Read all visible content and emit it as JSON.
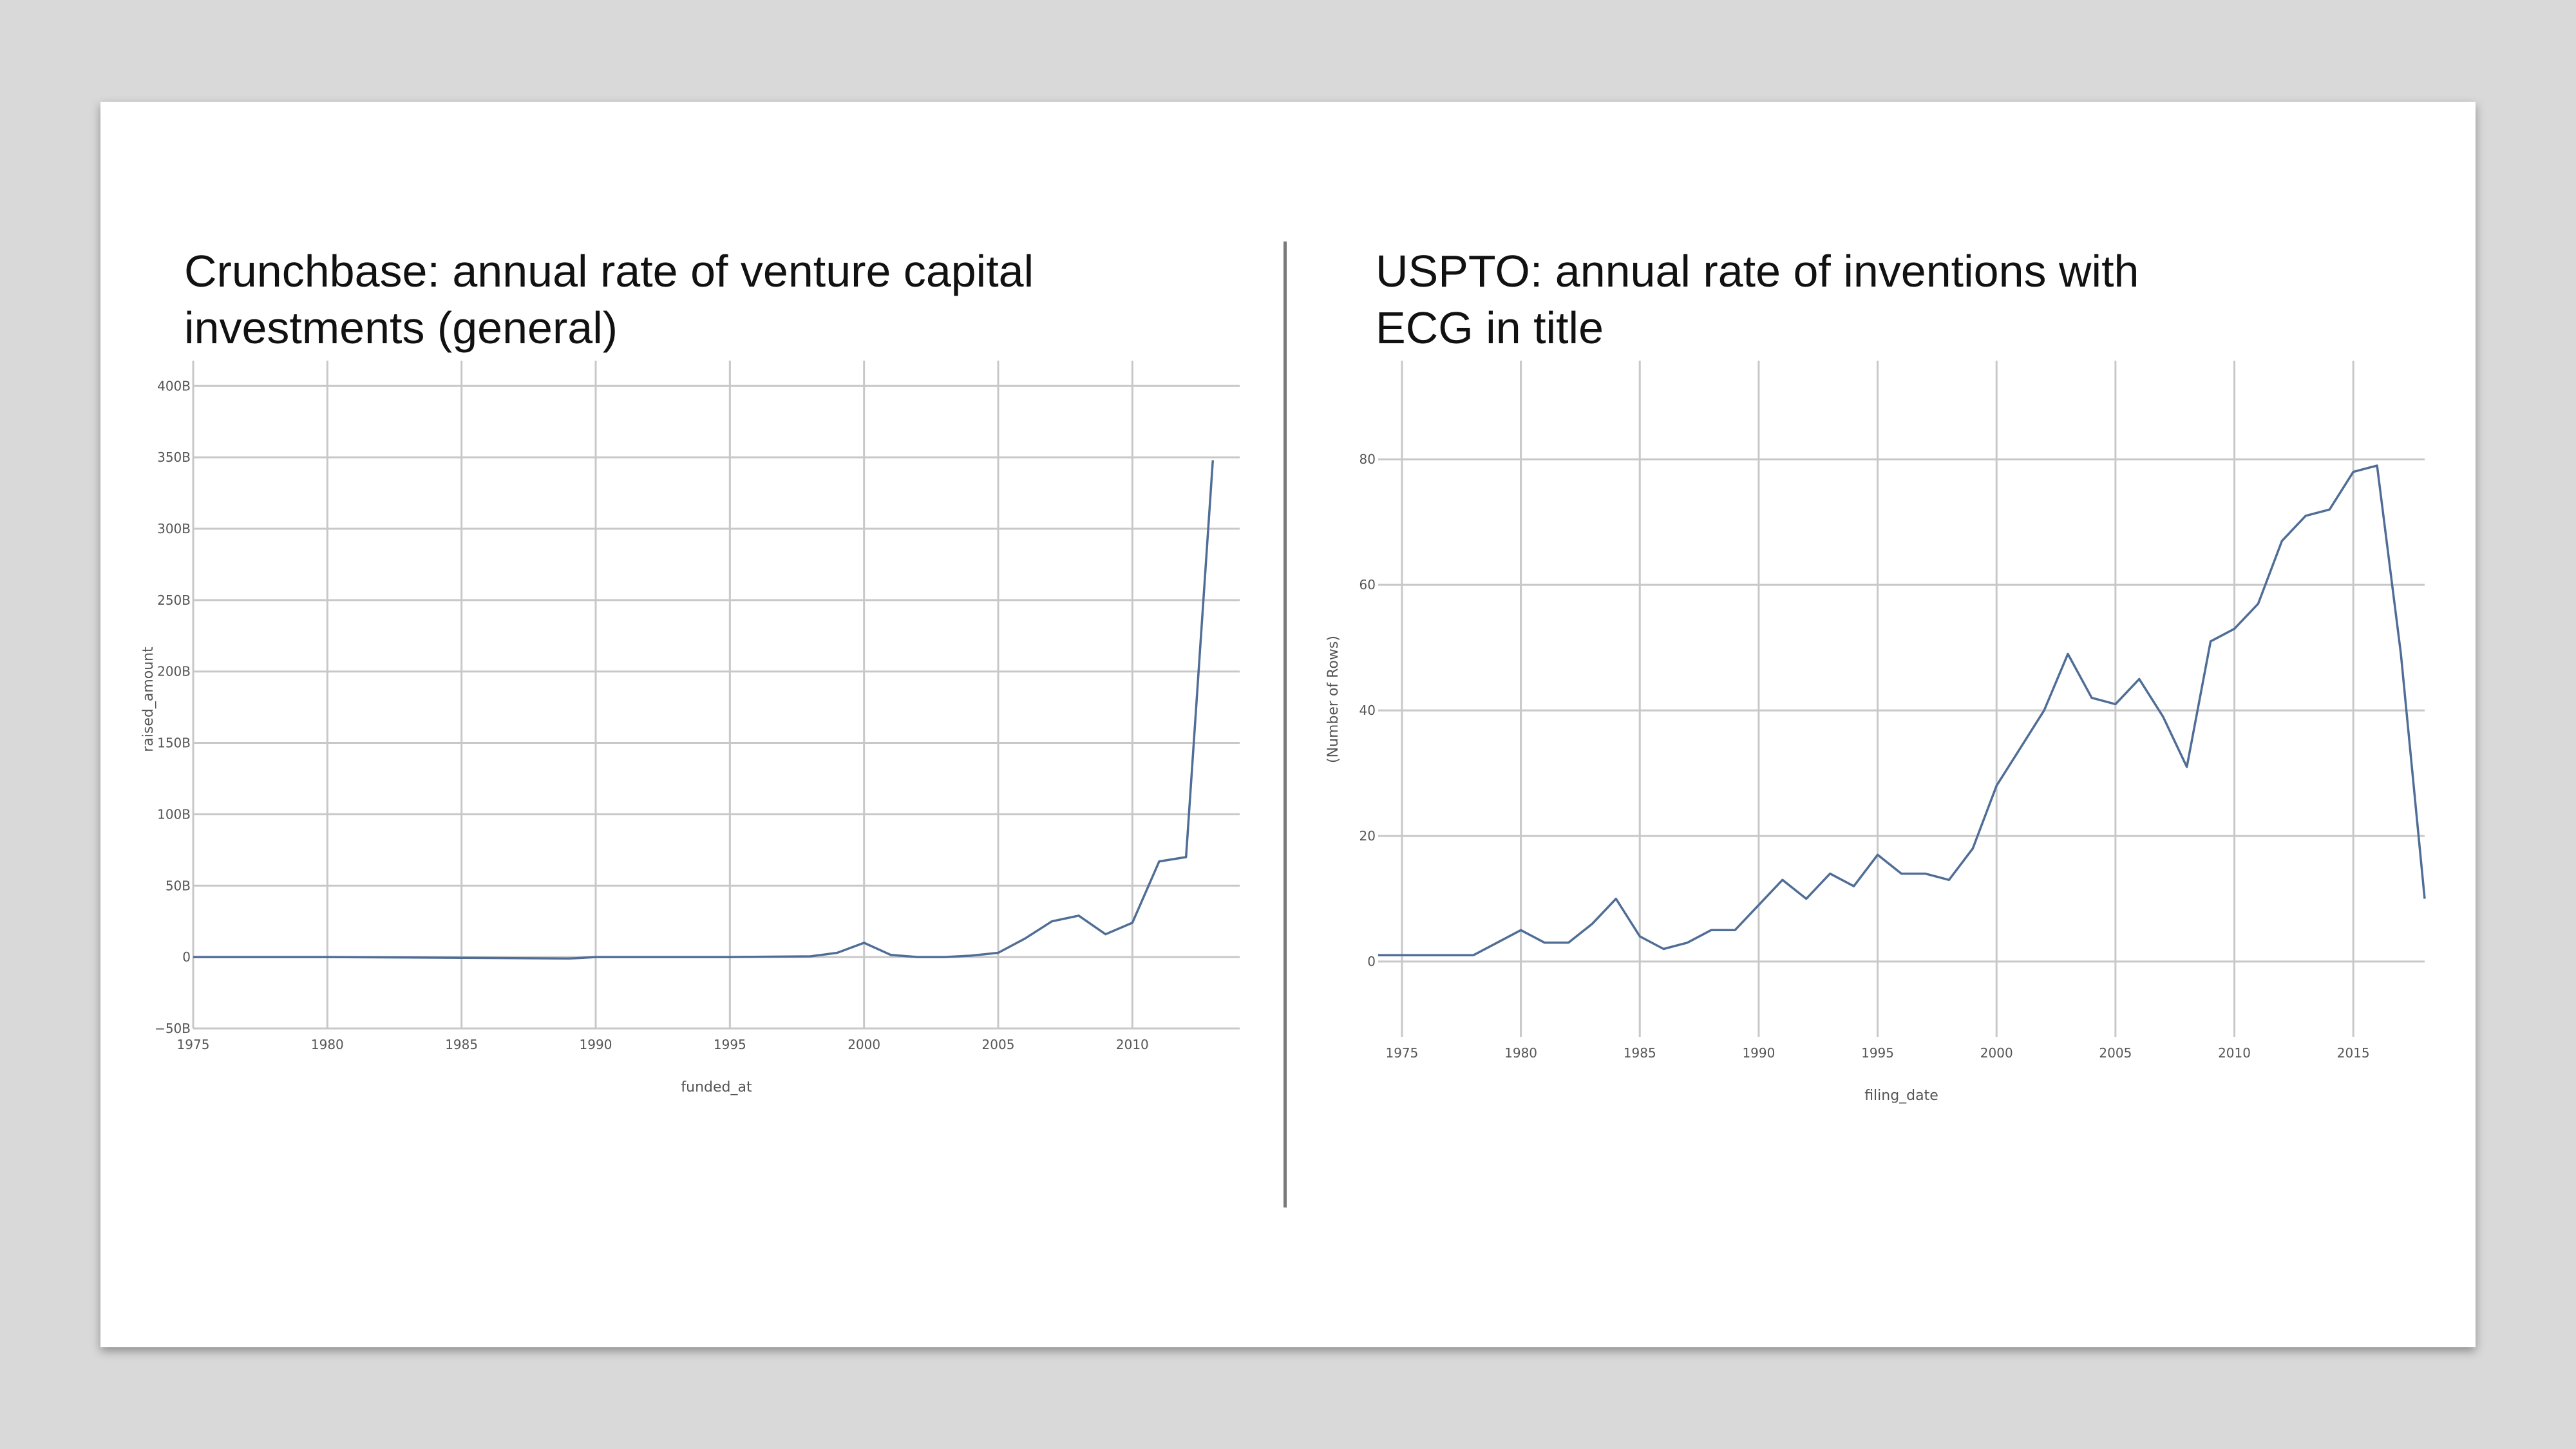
{
  "chart_data": [
    {
      "type": "line",
      "title": "Crunchbase: annual rate of venture capital investments (general)",
      "xlabel": "funded_at",
      "ylabel": "raised_amount",
      "xlim": [
        1975,
        2014
      ],
      "ylim": [
        -50000000000,
        415000000000
      ],
      "x_ticks": [
        1975,
        1980,
        1985,
        1990,
        1995,
        2000,
        2005,
        2010
      ],
      "y_ticks": [
        -50000000000,
        0,
        50000000000,
        100000000000,
        150000000000,
        200000000000,
        250000000000,
        300000000000,
        350000000000,
        400000000000
      ],
      "x_tick_labels": [
        "1975",
        "1980",
        "1985",
        "1990",
        "1995",
        "2000",
        "2005",
        "2010"
      ],
      "y_tick_labels": [
        "−50B",
        "0",
        "50B",
        "100B",
        "150B",
        "200B",
        "250B",
        "300B",
        "350B",
        "400B"
      ],
      "grid": true,
      "line_color": "#4f6d96",
      "x": [
        1975,
        1980,
        1985,
        1989,
        1990,
        1995,
        1998,
        1999,
        2000,
        2001,
        2002,
        2003,
        2004,
        2005,
        2006,
        2007,
        2008,
        2009,
        2010,
        2011,
        2012,
        2013
      ],
      "y": [
        0,
        0,
        -500000000,
        -1000000000,
        0,
        0,
        500000000,
        3000000000,
        10000000000,
        1500000000,
        0,
        0,
        1000000000,
        3000000000,
        13000000000,
        25000000000,
        29000000000,
        16000000000,
        24000000000,
        67000000000,
        70000000000,
        348000000000
      ]
    },
    {
      "type": "line",
      "title": "USPTO: annual rate of inventions with ECG in title",
      "xlabel": "filing_date",
      "ylabel": "(Number of Rows)",
      "xlim": [
        1974,
        2018
      ],
      "ylim": [
        -12,
        95
      ],
      "x_ticks": [
        1975,
        1980,
        1985,
        1990,
        1995,
        2000,
        2005,
        2010,
        2015
      ],
      "y_ticks": [
        0,
        20,
        40,
        60,
        80
      ],
      "x_tick_labels": [
        "1975",
        "1980",
        "1985",
        "1990",
        "1995",
        "2000",
        "2005",
        "2010",
        "2015"
      ],
      "y_tick_labels": [
        "0",
        "20",
        "40",
        "60",
        "80"
      ],
      "grid": true,
      "line_color": "#4f6d96",
      "x": [
        1974,
        1975,
        1976,
        1977,
        1978,
        1979,
        1980,
        1981,
        1982,
        1983,
        1984,
        1985,
        1986,
        1987,
        1988,
        1989,
        1990,
        1991,
        1992,
        1993,
        1994,
        1995,
        1996,
        1997,
        1998,
        1999,
        2000,
        2001,
        2002,
        2003,
        2004,
        2005,
        2006,
        2007,
        2008,
        2009,
        2010,
        2011,
        2012,
        2013,
        2014,
        2015,
        2016,
        2017,
        2018
      ],
      "y": [
        1,
        1,
        1,
        1,
        1,
        3,
        5,
        3,
        3,
        6,
        10,
        4,
        2,
        3,
        5,
        5,
        9,
        13,
        10,
        14,
        12,
        17,
        14,
        14,
        13,
        18,
        28,
        34,
        40,
        49,
        42,
        41,
        45,
        39,
        31,
        51,
        53,
        57,
        67,
        71,
        72,
        78,
        79,
        49,
        10
      ]
    }
  ]
}
